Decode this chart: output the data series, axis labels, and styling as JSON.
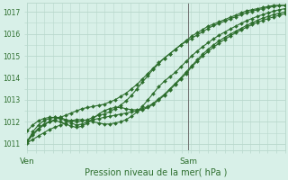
{
  "xlabel": "Pression niveau de la mer( hPa )",
  "background_color": "#d8f0e8",
  "grid_color": "#b8d8cc",
  "line_color": "#2d6e2d",
  "marker_color": "#2d6e2d",
  "ylim": [
    1010.7,
    1017.4
  ],
  "yticks": [
    1011,
    1012,
    1013,
    1014,
    1015,
    1016,
    1017
  ],
  "xtick_labels": [
    "Ven",
    "Sam"
  ],
  "vline_color": "#707070",
  "marker_size": 2.0,
  "linewidth": 0.8,
  "series": [
    {
      "y": [
        1011.1,
        1011.55,
        1011.85,
        1012.05,
        1012.15,
        1012.2,
        1012.2,
        1012.1,
        1012.05,
        1012.0,
        1012.05,
        1012.1,
        1012.2,
        1012.3,
        1012.35,
        1012.45,
        1012.6,
        1012.75,
        1012.95,
        1013.2,
        1013.5,
        1013.8,
        1014.1,
        1014.4,
        1014.65,
        1014.9,
        1015.1,
        1015.3,
        1015.5,
        1015.7,
        1015.9,
        1016.05,
        1016.2,
        1016.35,
        1016.45,
        1016.55,
        1016.65,
        1016.75,
        1016.85,
        1016.95,
        1017.05,
        1017.1,
        1017.15,
        1017.2,
        1017.25,
        1017.3,
        1017.3,
        1017.3
      ]
    },
    {
      "y": [
        1011.1,
        1011.4,
        1011.65,
        1011.85,
        1012.0,
        1012.1,
        1012.2,
        1012.3,
        1012.4,
        1012.5,
        1012.6,
        1012.65,
        1012.7,
        1012.75,
        1012.8,
        1012.9,
        1013.0,
        1013.15,
        1013.3,
        1013.5,
        1013.7,
        1013.95,
        1014.2,
        1014.45,
        1014.7,
        1014.9,
        1015.1,
        1015.3,
        1015.5,
        1015.65,
        1015.8,
        1015.95,
        1016.1,
        1016.25,
        1016.38,
        1016.48,
        1016.58,
        1016.68,
        1016.78,
        1016.87,
        1016.96,
        1017.03,
        1017.1,
        1017.15,
        1017.2,
        1017.25,
        1017.28,
        1017.3
      ]
    },
    {
      "y": [
        1011.6,
        1011.85,
        1012.05,
        1012.15,
        1012.2,
        1012.2,
        1012.15,
        1012.05,
        1011.95,
        1011.85,
        1011.9,
        1012.0,
        1012.1,
        1012.15,
        1012.2,
        1012.25,
        1012.3,
        1012.35,
        1012.4,
        1012.45,
        1012.5,
        1012.55,
        1012.65,
        1012.8,
        1013.0,
        1013.2,
        1013.45,
        1013.7,
        1013.95,
        1014.2,
        1014.5,
        1014.75,
        1015.0,
        1015.2,
        1015.4,
        1015.58,
        1015.75,
        1015.9,
        1016.05,
        1016.18,
        1016.3,
        1016.42,
        1016.53,
        1016.62,
        1016.7,
        1016.78,
        1016.85,
        1016.92
      ]
    },
    {
      "y": [
        1011.05,
        1011.2,
        1011.35,
        1011.5,
        1011.65,
        1011.75,
        1011.85,
        1011.95,
        1012.05,
        1012.1,
        1012.1,
        1012.05,
        1012.0,
        1011.95,
        1011.9,
        1011.9,
        1011.95,
        1012.0,
        1012.1,
        1012.25,
        1012.45,
        1012.7,
        1013.0,
        1013.3,
        1013.6,
        1013.85,
        1014.05,
        1014.25,
        1014.5,
        1014.75,
        1015.0,
        1015.22,
        1015.42,
        1015.6,
        1015.78,
        1015.94,
        1016.08,
        1016.22,
        1016.35,
        1016.48,
        1016.6,
        1016.7,
        1016.8,
        1016.88,
        1016.96,
        1017.04,
        1017.1,
        1017.15
      ]
    },
    {
      "y": [
        1011.15,
        1011.45,
        1011.7,
        1011.9,
        1012.0,
        1012.05,
        1012.0,
        1011.9,
        1011.8,
        1011.75,
        1011.8,
        1011.95,
        1012.15,
        1012.35,
        1012.5,
        1012.6,
        1012.65,
        1012.65,
        1012.6,
        1012.55,
        1012.55,
        1012.6,
        1012.7,
        1012.85,
        1013.05,
        1013.25,
        1013.5,
        1013.75,
        1014.0,
        1014.28,
        1014.55,
        1014.82,
        1015.08,
        1015.3,
        1015.5,
        1015.68,
        1015.84,
        1015.98,
        1016.12,
        1016.25,
        1016.38,
        1016.5,
        1016.62,
        1016.72,
        1016.8,
        1016.88,
        1016.94,
        1017.0
      ]
    }
  ]
}
